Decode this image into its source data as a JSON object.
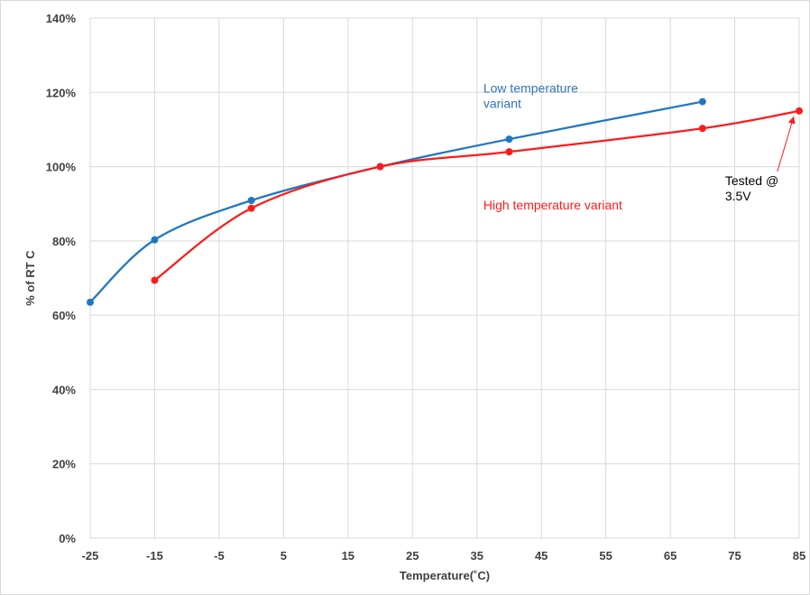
{
  "chart_data": {
    "type": "line",
    "title": "",
    "xlabel": "Temperature(˚C)",
    "ylabel": "% of RT C",
    "xlim": [
      -25,
      85
    ],
    "ylim": [
      0,
      140
    ],
    "x_ticks": [
      -25,
      -15,
      -5,
      5,
      15,
      25,
      35,
      45,
      55,
      65,
      75,
      85
    ],
    "y_ticks": [
      0,
      20,
      40,
      60,
      80,
      100,
      120,
      140
    ],
    "y_tick_labels": [
      "0%",
      "20%",
      "40%",
      "60%",
      "80%",
      "100%",
      "120%",
      "140%"
    ],
    "grid": true,
    "smooth": true,
    "series": [
      {
        "name": "Low temperature variant",
        "color": "#1f77c0",
        "x": [
          -25,
          -15,
          0,
          20,
          40,
          70
        ],
        "y": [
          63.5,
          80.3,
          90.9,
          100.0,
          107.4,
          117.5
        ]
      },
      {
        "name": "High temperature variant",
        "color": "#ff1a1a",
        "x": [
          -15,
          0,
          20,
          40,
          70,
          85
        ],
        "y": [
          69.4,
          88.8,
          100.0,
          104.0,
          110.3,
          115.0
        ]
      }
    ],
    "annotations": [
      {
        "text_lines": [
          "Low temperature",
          "variant"
        ],
        "color": "#2f75b5",
        "x": 36,
        "y": 120
      },
      {
        "text_lines": [
          "High temperature variant"
        ],
        "color": "#ff1a1a",
        "x": 36,
        "y": 88.5
      },
      {
        "text_lines": [
          "Tested @",
          "3.5V"
        ],
        "color": "#000000",
        "x": 73.5,
        "y": 95,
        "arrow_to": [
          85,
          115
        ]
      }
    ]
  }
}
